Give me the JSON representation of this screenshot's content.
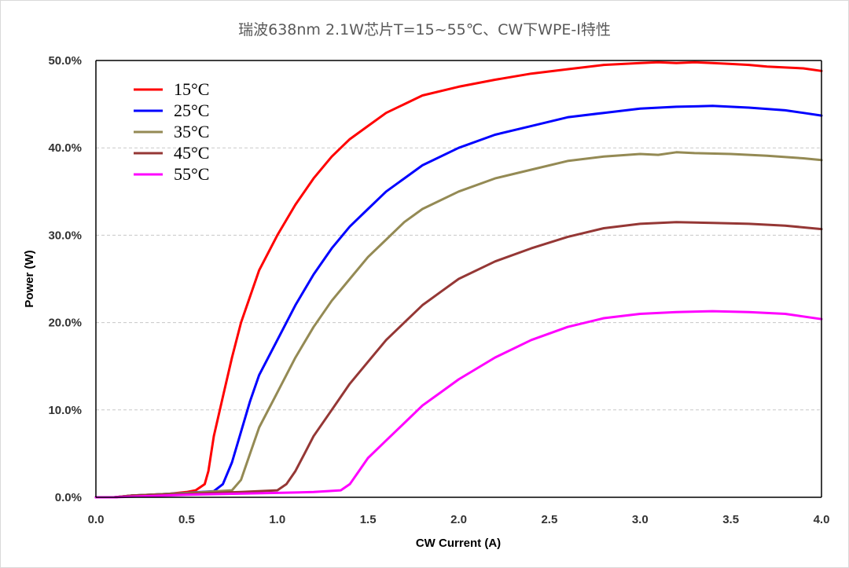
{
  "chart_data": {
    "type": "line",
    "title": "瑞波638nm 2.1W芯片T=15~55℃、CW下WPE-I特性",
    "xlabel": "CW Current (A)",
    "ylabel": "Power (W)",
    "xlim": [
      0,
      4
    ],
    "ylim": [
      0,
      50
    ],
    "x_ticks": [
      "0.0",
      "0.5",
      "1.0",
      "1.5",
      "2.0",
      "2.5",
      "3.0",
      "3.5",
      "4.0"
    ],
    "y_ticks": [
      "0.0%",
      "10.0%",
      "20.0%",
      "30.0%",
      "40.0%",
      "50.0%"
    ],
    "grid": "horizontal dashed",
    "legend_position": "top-left",
    "series": [
      {
        "name": "15°C",
        "color": "#ff0000",
        "points": [
          [
            0,
            0
          ],
          [
            0.1,
            0
          ],
          [
            0.2,
            0.2
          ],
          [
            0.3,
            0.3
          ],
          [
            0.4,
            0.4
          ],
          [
            0.5,
            0.6
          ],
          [
            0.55,
            0.8
          ],
          [
            0.6,
            1.5
          ],
          [
            0.62,
            3
          ],
          [
            0.65,
            7
          ],
          [
            0.7,
            11.5
          ],
          [
            0.75,
            16
          ],
          [
            0.8,
            20
          ],
          [
            0.9,
            26
          ],
          [
            1.0,
            30
          ],
          [
            1.1,
            33.5
          ],
          [
            1.2,
            36.5
          ],
          [
            1.3,
            39
          ],
          [
            1.4,
            41
          ],
          [
            1.5,
            42.5
          ],
          [
            1.6,
            44
          ],
          [
            1.7,
            45
          ],
          [
            1.8,
            46
          ],
          [
            2.0,
            47
          ],
          [
            2.2,
            47.8
          ],
          [
            2.4,
            48.5
          ],
          [
            2.6,
            49
          ],
          [
            2.8,
            49.5
          ],
          [
            3.0,
            49.7
          ],
          [
            3.1,
            49.8
          ],
          [
            3.2,
            49.7
          ],
          [
            3.3,
            49.8
          ],
          [
            3.4,
            49.7
          ],
          [
            3.5,
            49.6
          ],
          [
            3.6,
            49.5
          ],
          [
            3.7,
            49.3
          ],
          [
            3.8,
            49.2
          ],
          [
            3.9,
            49.1
          ],
          [
            4.0,
            48.8
          ]
        ]
      },
      {
        "name": "25°C",
        "color": "#0000ff",
        "points": [
          [
            0,
            0
          ],
          [
            0.1,
            0
          ],
          [
            0.2,
            0.2
          ],
          [
            0.3,
            0.3
          ],
          [
            0.5,
            0.5
          ],
          [
            0.65,
            0.7
          ],
          [
            0.7,
            1.5
          ],
          [
            0.75,
            4
          ],
          [
            0.8,
            7.5
          ],
          [
            0.85,
            11
          ],
          [
            0.9,
            14
          ],
          [
            1.0,
            18
          ],
          [
            1.1,
            22
          ],
          [
            1.2,
            25.5
          ],
          [
            1.3,
            28.5
          ],
          [
            1.4,
            31
          ],
          [
            1.5,
            33
          ],
          [
            1.6,
            35
          ],
          [
            1.7,
            36.5
          ],
          [
            1.8,
            38
          ],
          [
            2.0,
            40
          ],
          [
            2.2,
            41.5
          ],
          [
            2.4,
            42.5
          ],
          [
            2.6,
            43.5
          ],
          [
            2.8,
            44
          ],
          [
            3.0,
            44.5
          ],
          [
            3.2,
            44.7
          ],
          [
            3.4,
            44.8
          ],
          [
            3.6,
            44.6
          ],
          [
            3.8,
            44.3
          ],
          [
            3.9,
            44.0
          ],
          [
            4.0,
            43.7
          ]
        ]
      },
      {
        "name": "35°C",
        "color": "#948a54",
        "points": [
          [
            0,
            0
          ],
          [
            0.1,
            0
          ],
          [
            0.2,
            0.2
          ],
          [
            0.4,
            0.4
          ],
          [
            0.6,
            0.6
          ],
          [
            0.75,
            0.8
          ],
          [
            0.8,
            2
          ],
          [
            0.85,
            5
          ],
          [
            0.9,
            8
          ],
          [
            1.0,
            12
          ],
          [
            1.1,
            16
          ],
          [
            1.2,
            19.5
          ],
          [
            1.3,
            22.5
          ],
          [
            1.4,
            25
          ],
          [
            1.5,
            27.5
          ],
          [
            1.6,
            29.5
          ],
          [
            1.7,
            31.5
          ],
          [
            1.8,
            33
          ],
          [
            2.0,
            35
          ],
          [
            2.2,
            36.5
          ],
          [
            2.4,
            37.5
          ],
          [
            2.6,
            38.5
          ],
          [
            2.8,
            39
          ],
          [
            3.0,
            39.3
          ],
          [
            3.1,
            39.2
          ],
          [
            3.2,
            39.5
          ],
          [
            3.3,
            39.4
          ],
          [
            3.5,
            39.3
          ],
          [
            3.7,
            39.1
          ],
          [
            3.9,
            38.8
          ],
          [
            4.0,
            38.6
          ]
        ]
      },
      {
        "name": "45°C",
        "color": "#953735",
        "points": [
          [
            0,
            0
          ],
          [
            0.1,
            0
          ],
          [
            0.2,
            0.2
          ],
          [
            0.5,
            0.4
          ],
          [
            0.8,
            0.6
          ],
          [
            1.0,
            0.8
          ],
          [
            1.05,
            1.5
          ],
          [
            1.1,
            3
          ],
          [
            1.15,
            5
          ],
          [
            1.2,
            7
          ],
          [
            1.3,
            10
          ],
          [
            1.4,
            13
          ],
          [
            1.5,
            15.5
          ],
          [
            1.6,
            18
          ],
          [
            1.7,
            20
          ],
          [
            1.8,
            22
          ],
          [
            1.9,
            23.5
          ],
          [
            2.0,
            25
          ],
          [
            2.2,
            27
          ],
          [
            2.4,
            28.5
          ],
          [
            2.6,
            29.8
          ],
          [
            2.8,
            30.8
          ],
          [
            3.0,
            31.3
          ],
          [
            3.2,
            31.5
          ],
          [
            3.4,
            31.4
          ],
          [
            3.6,
            31.3
          ],
          [
            3.8,
            31.1
          ],
          [
            4.0,
            30.7
          ]
        ]
      },
      {
        "name": "55°C",
        "color": "#ff00ff",
        "points": [
          [
            0,
            0
          ],
          [
            0.1,
            0
          ],
          [
            0.5,
            0.3
          ],
          [
            1.0,
            0.5
          ],
          [
            1.2,
            0.6
          ],
          [
            1.35,
            0.8
          ],
          [
            1.4,
            1.5
          ],
          [
            1.45,
            3
          ],
          [
            1.5,
            4.5
          ],
          [
            1.6,
            6.5
          ],
          [
            1.7,
            8.5
          ],
          [
            1.8,
            10.5
          ],
          [
            1.9,
            12
          ],
          [
            2.0,
            13.5
          ],
          [
            2.2,
            16
          ],
          [
            2.4,
            18
          ],
          [
            2.6,
            19.5
          ],
          [
            2.8,
            20.5
          ],
          [
            3.0,
            21
          ],
          [
            3.2,
            21.2
          ],
          [
            3.4,
            21.3
          ],
          [
            3.6,
            21.2
          ],
          [
            3.8,
            21.0
          ],
          [
            4.0,
            20.4
          ]
        ]
      }
    ]
  }
}
